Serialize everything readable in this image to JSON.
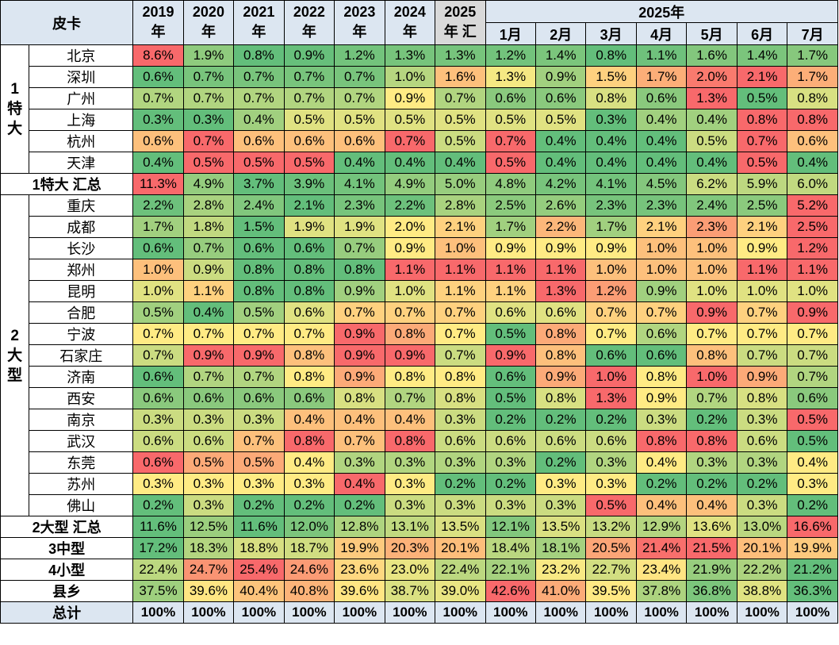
{
  "corner_label": "皮卡",
  "year_headers": [
    {
      "top": "2019",
      "bottom": "年"
    },
    {
      "top": "2020",
      "bottom": "年"
    },
    {
      "top": "2021",
      "bottom": "年"
    },
    {
      "top": "2022",
      "bottom": "年"
    },
    {
      "top": "2023",
      "bottom": "年"
    },
    {
      "top": "2024",
      "bottom": "年"
    },
    {
      "top": "2025",
      "bottom": "年 汇"
    }
  ],
  "group_header": "2025年",
  "month_headers": [
    "1月",
    "2月",
    "3月",
    "4月",
    "5月",
    "6月",
    "7月"
  ],
  "groups": [
    {
      "label": "1\n特\n大",
      "rows": [
        {
          "city": "北京",
          "values": [
            "8.6%",
            "1.9%",
            "0.8%",
            "0.9%",
            "1.2%",
            "1.3%",
            "1.3%",
            "1.2%",
            "1.4%",
            "0.8%",
            "1.1%",
            "1.6%",
            "1.4%",
            "1.7%"
          ]
        },
        {
          "city": "深圳",
          "values": [
            "0.6%",
            "0.7%",
            "0.7%",
            "0.7%",
            "0.7%",
            "1.0%",
            "1.6%",
            "1.3%",
            "0.9%",
            "1.5%",
            "1.7%",
            "2.0%",
            "2.1%",
            "1.7%"
          ]
        },
        {
          "city": "广州",
          "values": [
            "0.7%",
            "0.7%",
            "0.7%",
            "0.7%",
            "0.7%",
            "0.9%",
            "0.7%",
            "0.6%",
            "0.6%",
            "0.8%",
            "0.6%",
            "1.3%",
            "0.5%",
            "0.8%"
          ]
        },
        {
          "city": "上海",
          "values": [
            "0.3%",
            "0.3%",
            "0.4%",
            "0.5%",
            "0.5%",
            "0.5%",
            "0.5%",
            "0.5%",
            "0.5%",
            "0.3%",
            "0.4%",
            "0.4%",
            "0.8%",
            "0.8%"
          ]
        },
        {
          "city": "杭州",
          "values": [
            "0.6%",
            "0.7%",
            "0.6%",
            "0.6%",
            "0.6%",
            "0.7%",
            "0.5%",
            "0.7%",
            "0.4%",
            "0.4%",
            "0.4%",
            "0.5%",
            "0.7%",
            "0.6%"
          ]
        },
        {
          "city": "天津",
          "values": [
            "0.4%",
            "0.5%",
            "0.5%",
            "0.5%",
            "0.4%",
            "0.4%",
            "0.4%",
            "0.5%",
            "0.4%",
            "0.4%",
            "0.4%",
            "0.4%",
            "0.5%",
            "0.4%"
          ]
        }
      ],
      "summary": {
        "label": "1特大 汇总",
        "values": [
          "11.3%",
          "4.9%",
          "3.7%",
          "3.9%",
          "4.1%",
          "4.9%",
          "5.0%",
          "4.8%",
          "4.2%",
          "4.1%",
          "4.5%",
          "6.2%",
          "5.9%",
          "6.0%"
        ]
      }
    },
    {
      "label": "2\n大\n型",
      "rows": [
        {
          "city": "重庆",
          "values": [
            "2.2%",
            "2.8%",
            "2.4%",
            "2.1%",
            "2.3%",
            "2.2%",
            "2.8%",
            "2.5%",
            "2.6%",
            "2.3%",
            "2.3%",
            "2.4%",
            "2.5%",
            "5.2%"
          ]
        },
        {
          "city": "成都",
          "values": [
            "1.7%",
            "1.8%",
            "1.5%",
            "1.9%",
            "1.9%",
            "2.0%",
            "2.1%",
            "1.7%",
            "2.2%",
            "1.7%",
            "2.1%",
            "2.3%",
            "2.1%",
            "2.5%"
          ]
        },
        {
          "city": "长沙",
          "values": [
            "0.6%",
            "0.7%",
            "0.6%",
            "0.6%",
            "0.7%",
            "0.9%",
            "1.0%",
            "0.9%",
            "0.9%",
            "0.9%",
            "1.0%",
            "1.0%",
            "0.9%",
            "1.2%"
          ]
        },
        {
          "city": "郑州",
          "values": [
            "1.0%",
            "0.9%",
            "0.8%",
            "0.8%",
            "0.8%",
            "1.1%",
            "1.1%",
            "1.1%",
            "1.1%",
            "1.0%",
            "1.0%",
            "1.0%",
            "1.1%",
            "1.1%"
          ]
        },
        {
          "city": "昆明",
          "values": [
            "1.0%",
            "1.1%",
            "0.8%",
            "0.8%",
            "0.9%",
            "1.0%",
            "1.1%",
            "1.1%",
            "1.3%",
            "1.2%",
            "0.9%",
            "1.0%",
            "1.0%",
            "1.0%"
          ]
        },
        {
          "city": "合肥",
          "values": [
            "0.5%",
            "0.4%",
            "0.5%",
            "0.6%",
            "0.7%",
            "0.7%",
            "0.7%",
            "0.6%",
            "0.6%",
            "0.7%",
            "0.7%",
            "0.9%",
            "0.7%",
            "0.9%"
          ]
        },
        {
          "city": "宁波",
          "values": [
            "0.7%",
            "0.7%",
            "0.7%",
            "0.7%",
            "0.9%",
            "0.8%",
            "0.7%",
            "0.5%",
            "0.8%",
            "0.7%",
            "0.6%",
            "0.7%",
            "0.7%",
            "0.7%"
          ]
        },
        {
          "city": "石家庄",
          "values": [
            "0.7%",
            "0.9%",
            "0.9%",
            "0.8%",
            "0.9%",
            "0.9%",
            "0.7%",
            "0.9%",
            "0.8%",
            "0.6%",
            "0.6%",
            "0.8%",
            "0.7%",
            "0.7%"
          ]
        },
        {
          "city": "济南",
          "values": [
            "0.6%",
            "0.7%",
            "0.7%",
            "0.8%",
            "0.9%",
            "0.8%",
            "0.8%",
            "0.6%",
            "0.9%",
            "1.0%",
            "0.8%",
            "1.0%",
            "0.9%",
            "0.7%"
          ]
        },
        {
          "city": "西安",
          "values": [
            "0.6%",
            "0.6%",
            "0.6%",
            "0.6%",
            "0.8%",
            "0.7%",
            "0.8%",
            "0.5%",
            "0.8%",
            "1.3%",
            "0.9%",
            "0.7%",
            "0.8%",
            "0.6%"
          ]
        },
        {
          "city": "南京",
          "values": [
            "0.3%",
            "0.3%",
            "0.3%",
            "0.4%",
            "0.4%",
            "0.4%",
            "0.3%",
            "0.2%",
            "0.2%",
            "0.2%",
            "0.3%",
            "0.2%",
            "0.3%",
            "0.5%"
          ]
        },
        {
          "city": "武汉",
          "values": [
            "0.6%",
            "0.6%",
            "0.7%",
            "0.8%",
            "0.7%",
            "0.8%",
            "0.6%",
            "0.6%",
            "0.6%",
            "0.6%",
            "0.8%",
            "0.8%",
            "0.6%",
            "0.5%"
          ]
        },
        {
          "city": "东莞",
          "values": [
            "0.6%",
            "0.5%",
            "0.5%",
            "0.4%",
            "0.3%",
            "0.3%",
            "0.3%",
            "0.3%",
            "0.2%",
            "0.3%",
            "0.4%",
            "0.3%",
            "0.3%",
            "0.4%"
          ]
        },
        {
          "city": "苏州",
          "values": [
            "0.3%",
            "0.3%",
            "0.3%",
            "0.3%",
            "0.4%",
            "0.3%",
            "0.2%",
            "0.2%",
            "0.3%",
            "0.3%",
            "0.2%",
            "0.2%",
            "0.2%",
            "0.3%"
          ]
        },
        {
          "city": "佛山",
          "values": [
            "0.2%",
            "0.3%",
            "0.2%",
            "0.2%",
            "0.2%",
            "0.3%",
            "0.3%",
            "0.3%",
            "0.3%",
            "0.5%",
            "0.4%",
            "0.4%",
            "0.3%",
            "0.2%"
          ]
        }
      ],
      "summary": {
        "label": "2大型 汇总",
        "values": [
          "11.6%",
          "12.5%",
          "11.6%",
          "12.0%",
          "12.8%",
          "13.1%",
          "13.5%",
          "12.1%",
          "13.5%",
          "13.2%",
          "12.9%",
          "13.6%",
          "13.0%",
          "16.6%"
        ]
      }
    }
  ],
  "extra_rows": [
    {
      "label": "3中型",
      "values": [
        "17.2%",
        "18.3%",
        "18.8%",
        "18.7%",
        "19.9%",
        "20.3%",
        "20.1%",
        "18.4%",
        "18.1%",
        "20.5%",
        "21.4%",
        "21.5%",
        "20.1%",
        "19.9%"
      ]
    },
    {
      "label": "4小型",
      "values": [
        "22.4%",
        "24.7%",
        "25.4%",
        "24.6%",
        "23.6%",
        "23.0%",
        "22.4%",
        "22.1%",
        "23.2%",
        "22.7%",
        "23.4%",
        "21.9%",
        "22.2%",
        "21.2%"
      ]
    },
    {
      "label": "县乡",
      "values": [
        "37.5%",
        "39.6%",
        "40.4%",
        "40.8%",
        "39.6%",
        "38.7%",
        "39.0%",
        "42.6%",
        "41.0%",
        "39.5%",
        "37.8%",
        "36.8%",
        "38.8%",
        "36.3%"
      ]
    }
  ],
  "total_row": {
    "label": "总计",
    "values": [
      "100%",
      "100%",
      "100%",
      "100%",
      "100%",
      "100%",
      "100%",
      "100%",
      "100%",
      "100%",
      "100%",
      "100%",
      "100%",
      "100%"
    ]
  },
  "colors": {
    "header_bg": "#dce6f1",
    "header_2025_bg": "#d9d9d9",
    "scale_low": "#63be7b",
    "scale_mid": "#ffeb84",
    "scale_high": "#f8696b"
  }
}
